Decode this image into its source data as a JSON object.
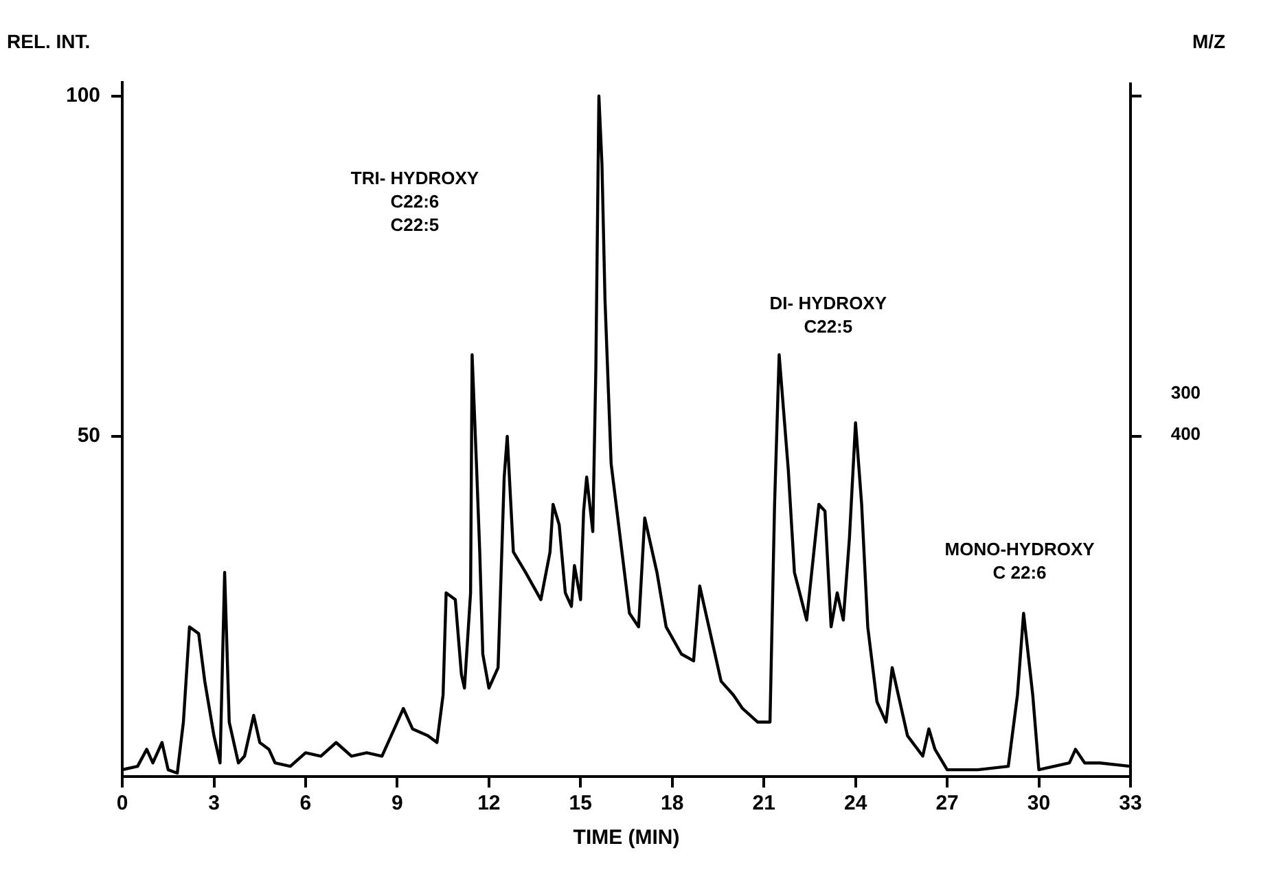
{
  "chart_data": {
    "type": "line",
    "xlabel": "TIME (MIN)",
    "ylabel": "REL. INT.",
    "y2label": "M/Z",
    "xlim": [
      0,
      33
    ],
    "xticks": [
      0,
      3,
      6,
      9,
      12,
      15,
      18,
      21,
      24,
      27,
      30,
      33
    ],
    "ylim": [
      0,
      102
    ],
    "yticks": [
      {
        "value": 50,
        "label": "50"
      },
      {
        "value": 100,
        "label": "100"
      }
    ],
    "grid": false,
    "legend": false,
    "marker": "none",
    "line_style": "solid",
    "annotations": [
      "TRI- HYDROXY\nC22:6\nC22:5",
      "DI- HYDROXY\nC22:5",
      "MONO-HYDROXY\nC 22:6",
      "300",
      "400"
    ],
    "series": [
      {
        "color": "#000000",
        "x": [
          0,
          0.5,
          0.8,
          1.0,
          1.3,
          1.5,
          1.8,
          2.0,
          2.2,
          2.5,
          2.7,
          3.0,
          3.2,
          3.35,
          3.5,
          3.8,
          4.0,
          4.3,
          4.5,
          4.8,
          5.0,
          5.5,
          6.0,
          6.5,
          7.0,
          7.5,
          8.0,
          8.5,
          9.0,
          9.2,
          9.5,
          10.0,
          10.3,
          10.5,
          10.6,
          10.9,
          11.1,
          11.2,
          11.4,
          11.45,
          11.6,
          11.7,
          11.8,
          12.0,
          12.3,
          12.5,
          12.6,
          12.8,
          13.2,
          13.7,
          14.0,
          14.1,
          14.3,
          14.5,
          14.7,
          14.8,
          15.0,
          15.1,
          15.2,
          15.4,
          15.5,
          15.6,
          15.7,
          15.8,
          16.0,
          16.3,
          16.6,
          16.9,
          17.1,
          17.5,
          17.8,
          18.3,
          18.7,
          18.9,
          19.2,
          19.6,
          20.0,
          20.3,
          20.8,
          21.2,
          21.35,
          21.5,
          21.8,
          22.0,
          22.4,
          22.8,
          23.0,
          23.2,
          23.4,
          23.6,
          23.8,
          24.0,
          24.2,
          24.4,
          24.7,
          25.0,
          25.2,
          25.4,
          25.7,
          26.2,
          26.4,
          26.6,
          27.0,
          28.0,
          29.0,
          29.3,
          29.5,
          29.8,
          30.0,
          31.0,
          31.2,
          31.5,
          32.0,
          33.0
        ],
        "values": [
          1,
          1.5,
          4,
          2,
          5,
          1,
          0.5,
          8,
          22,
          21,
          14,
          6,
          2,
          30,
          8,
          2,
          3,
          9,
          5,
          4,
          2,
          1.5,
          3.5,
          3,
          5,
          3,
          3.5,
          3,
          8,
          10,
          7,
          6,
          5,
          12,
          27,
          26,
          15,
          13,
          27,
          62,
          45,
          33,
          18,
          13,
          16,
          44,
          50,
          33,
          30,
          26,
          33,
          40,
          37,
          27,
          25,
          31,
          26,
          39,
          44,
          36,
          60,
          100,
          90,
          70,
          46,
          35,
          24,
          22,
          38,
          30,
          22,
          18,
          17,
          28,
          22,
          14,
          12,
          10,
          8,
          8,
          40,
          62,
          45,
          30,
          23,
          40,
          39,
          22,
          27,
          23,
          35,
          52,
          40,
          22,
          11,
          8,
          16,
          12,
          6,
          3,
          7,
          4,
          1,
          1,
          1.5,
          12,
          24,
          12,
          1,
          2,
          4,
          2,
          2,
          1.5
        ]
      }
    ]
  }
}
